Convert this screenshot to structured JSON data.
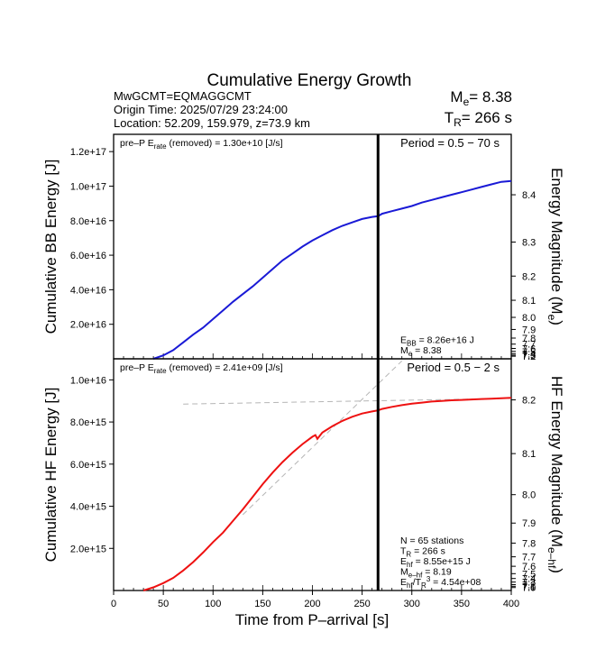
{
  "chart_data": {
    "type": "line",
    "title": "Cumulative Energy Growth",
    "header": {
      "event": "MwGCMT=EQMAGGCMT",
      "origin": "Origin Time: 2025/07/29 23:24:00",
      "location": "Location: 52.209, 159.979, z=73.9 km",
      "me_label": "M",
      "me_sub": "e",
      "me_value": "= 8.38",
      "tr_label": "T",
      "tr_sub": "R",
      "tr_value": "= 266 s"
    },
    "x": {
      "label": "Time from P–arrival [s]",
      "range": [
        0,
        400
      ],
      "ticks": [
        0,
        50,
        100,
        150,
        200,
        250,
        300,
        350,
        400
      ]
    },
    "marker_time": 266,
    "panels": [
      {
        "id": "bb",
        "ylabel": "Cumulative BB Energy [J]",
        "ylim": [
          0,
          1.3e+17
        ],
        "y_ticks": [
          2e+16,
          4e+16,
          6e+16,
          8e+16,
          1e+17,
          1.2e+17
        ],
        "y_tick_labels": [
          "2.0e+16",
          "4.0e+16",
          "6.0e+16",
          "8.0e+16",
          "1.0e+17",
          "1.2e+17"
        ],
        "right_label": "Energy Magnitude (M",
        "right_label_sub": "e",
        "right_label_end": ")",
        "right_ticks": [
          "8.4",
          "8.3",
          "8.2",
          "8.1",
          "8.0",
          "7.9",
          "7.8",
          "7.7",
          "7.6",
          "7.5",
          "7.4",
          "7.3",
          "7.2"
        ],
        "right_tick_energy": [
          9.5e+16,
          6.76e+16,
          4.79e+16,
          3.39e+16,
          2.4e+16,
          1.7e+16,
          1.2e+16,
          8500000000000000.0,
          6000000000000000.0,
          4300000000000000.0,
          3000000000000000.0,
          2100000000000000.0,
          1500000000000000.0
        ],
        "pre_p_text": "pre–P E",
        "pre_p_sub": "rate",
        "pre_p_value": " (removed) = 1.30e+10 [J/s]",
        "period": "Period = 0.5 − 70 s",
        "color": "#1a1ad6",
        "series": {
          "x": [
            40,
            50,
            60,
            70,
            80,
            90,
            100,
            110,
            120,
            130,
            140,
            150,
            160,
            170,
            180,
            190,
            200,
            210,
            220,
            230,
            240,
            250,
            260,
            266,
            270,
            280,
            290,
            300,
            310,
            320,
            330,
            340,
            350,
            360,
            370,
            380,
            390,
            400
          ],
          "y": [
            0.0,
            2000000000000000.0,
            5000000000000000.0,
            9500000000000000.0,
            1.4e+16,
            1.8e+16,
            2.3e+16,
            2.8e+16,
            3.3e+16,
            3.75e+16,
            4.2e+16,
            4.7e+16,
            5.2e+16,
            5.7e+16,
            6.1e+16,
            6.5e+16,
            6.85e+16,
            7.15e+16,
            7.45e+16,
            7.7e+16,
            7.9e+16,
            8.1e+16,
            8.22e+16,
            8.26e+16,
            8.4e+16,
            8.55e+16,
            8.7e+16,
            8.85e+16,
            9.05e+16,
            9.2e+16,
            9.35e+16,
            9.5e+16,
            9.65e+16,
            9.8e+16,
            9.95e+16,
            1.01e+17,
            1.025e+17,
            1.03e+17
          ]
        },
        "annotations": [
          {
            "main": "E",
            "sub": "BB",
            "rest": " = 8.26e+16 J"
          },
          {
            "main": "M",
            "sub": "e",
            "rest": " = 8.38"
          }
        ]
      },
      {
        "id": "hf",
        "ylabel": "Cumulative HF Energy [J]",
        "ylim": [
          0,
          1.1e+16
        ],
        "y_ticks": [
          2000000000000000.0,
          4000000000000000.0,
          6000000000000000.0,
          8000000000000000.0,
          1e+16
        ],
        "y_tick_labels": [
          "2.0e+15",
          "4.0e+15",
          "6.0e+15",
          "8.0e+15",
          "1.0e+16"
        ],
        "right_label": "HF Energy Magnitude (M",
        "right_label_sub": "e–hf",
        "right_label_end": ")",
        "right_ticks": [
          "8.2",
          "8.1",
          "8.0",
          "7.9",
          "7.8",
          "7.7",
          "7.6",
          "7.5",
          "7.4",
          "7.3",
          "7.2",
          "7.1",
          "7.0"
        ],
        "right_tick_energy": [
          9050000000000000.0,
          6500000000000000.0,
          4550000000000000.0,
          3200000000000000.0,
          2250000000000000.0,
          1600000000000000.0,
          1150000000000000.0,
          800000000000000.0,
          570000000000000.0,
          400000000000000.0,
          280000000000000.0,
          200000000000000.0,
          140000000000000.0
        ],
        "pre_p_text": "pre–P E",
        "pre_p_sub": "rate",
        "pre_p_value": " (removed) = 2.41e+09 [J/s]",
        "period": "Period = 0.5 − 2 s",
        "color": "#ee1111",
        "series": {
          "x": [
            30,
            40,
            50,
            60,
            70,
            80,
            90,
            100,
            110,
            120,
            130,
            140,
            150,
            160,
            170,
            180,
            190,
            200,
            203,
            205,
            210,
            220,
            230,
            240,
            250,
            260,
            266,
            270,
            280,
            290,
            300,
            310,
            320,
            330,
            340,
            350,
            360,
            370,
            380,
            390,
            400
          ],
          "y": [
            0.0,
            150000000000000.0,
            350000000000000.0,
            600000000000000.0,
            950000000000000.0,
            1350000000000000.0,
            1800000000000000.0,
            2300000000000000.0,
            2750000000000000.0,
            3300000000000000.0,
            3850000000000000.0,
            4450000000000000.0,
            5050000000000000.0,
            5600000000000000.0,
            6100000000000000.0,
            6550000000000000.0,
            6950000000000000.0,
            7300000000000000.0,
            7380000000000000.0,
            7200000000000000.0,
            7500000000000000.0,
            7800000000000000.0,
            8050000000000000.0,
            8250000000000000.0,
            8400000000000000.0,
            8500000000000000.0,
            8550000000000000.0,
            8620000000000000.0,
            8720000000000000.0,
            8800000000000000.0,
            8870000000000000.0,
            8920000000000000.0,
            8970000000000000.0,
            9000000000000000.0,
            9030000000000000.0,
            9050000000000000.0,
            9070000000000000.0,
            9090000000000000.0,
            9110000000000000.0,
            9130000000000000.0,
            9150000000000000.0
          ]
        },
        "guides": [
          {
            "x": [
              70,
              400
            ],
            "y": [
              8850000000000000.0,
              9120000000000000.0
            ]
          },
          {
            "x": [
              130,
              290
            ],
            "y": [
              3600000000000000.0,
              1.09e+16
            ]
          }
        ],
        "annotations": [
          {
            "main": "N = 65 stations",
            "sub": "",
            "rest": ""
          },
          {
            "main": "T",
            "sub": "R",
            "rest": " = 266  s"
          },
          {
            "main": "E",
            "sub": "hf",
            "rest": " = 8.55e+15 J"
          },
          {
            "main": "M",
            "sub": "e–hf",
            "rest": " = 8.19"
          },
          {
            "main": "E",
            "sub": "hf",
            "rest": "/T",
            "sub2": "R",
            "sup": "3",
            "rest2": " =  4.54e+08"
          }
        ]
      }
    ]
  }
}
